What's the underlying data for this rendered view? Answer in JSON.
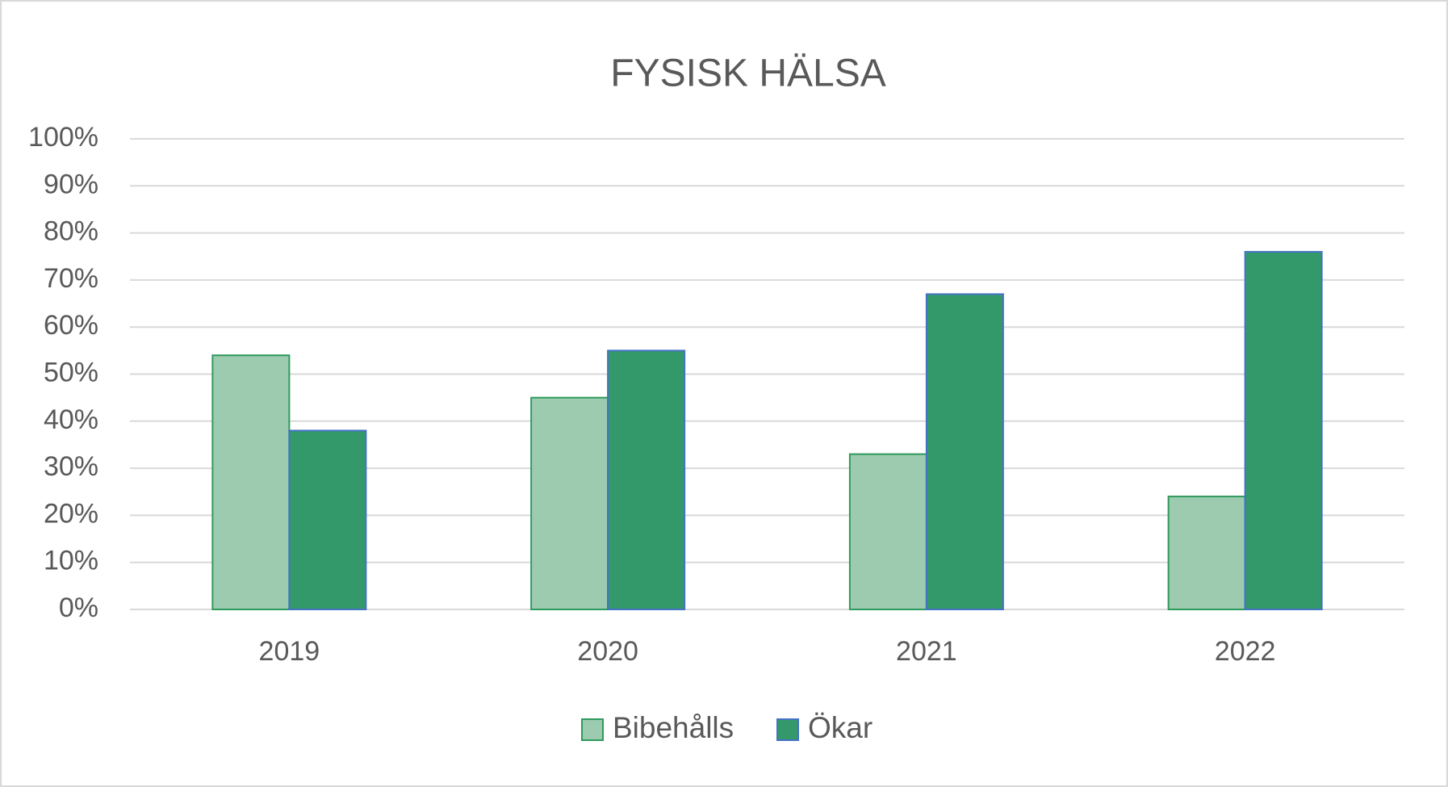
{
  "chart_data": {
    "type": "bar",
    "title": "FYSISK HÄLSA",
    "categories": [
      "2019",
      "2020",
      "2021",
      "2022"
    ],
    "series": [
      {
        "name": "Bibehålls",
        "color": "#9ccbb0",
        "edgecolor": "#2e9a5c",
        "values": [
          54,
          45,
          33,
          24
        ]
      },
      {
        "name": "Ökar",
        "color": "#33996a",
        "edgecolor": "#4472c4",
        "values": [
          38,
          55,
          67,
          76
        ]
      }
    ],
    "ylim": [
      0,
      100
    ],
    "yticks": [
      {
        "value": 0,
        "label": "0%"
      },
      {
        "value": 10,
        "label": "10%"
      },
      {
        "value": 20,
        "label": "20%"
      },
      {
        "value": 30,
        "label": "30%"
      },
      {
        "value": 40,
        "label": "40%"
      },
      {
        "value": 50,
        "label": "50%"
      },
      {
        "value": 60,
        "label": "60%"
      },
      {
        "value": 70,
        "label": "70%"
      },
      {
        "value": 80,
        "label": "80%"
      },
      {
        "value": 90,
        "label": "90%"
      },
      {
        "value": 100,
        "label": "100%"
      }
    ],
    "grid": true,
    "legend": "bottom"
  }
}
